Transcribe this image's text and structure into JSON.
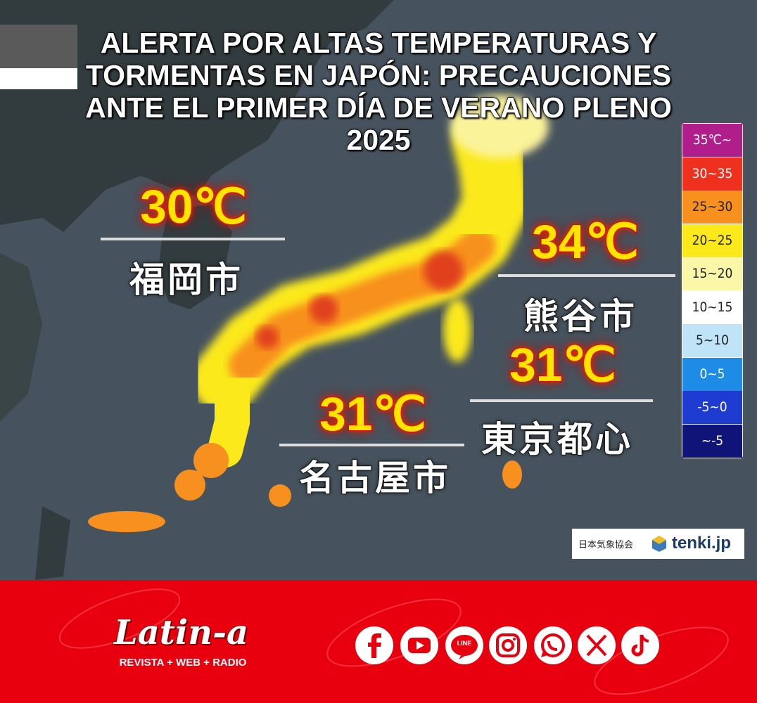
{
  "headline": "ALERTA POR ALTAS TEMPERATURAS Y TORMENTAS EN JAPÓN: PRECAUCIONES ANTE EL PRIMER DÍA DE VERANO PLENO 2025",
  "map": {
    "cities": [
      {
        "temp": "30℃",
        "name": "福岡市"
      },
      {
        "temp": "34℃",
        "name": "熊谷市"
      },
      {
        "temp": "31℃",
        "name": "東京都心"
      },
      {
        "temp": "31℃",
        "name": "名古屋市"
      }
    ],
    "legend": [
      {
        "label": "35℃~",
        "color": "#b01e8c"
      },
      {
        "label": "30~35",
        "color": "#f0301e"
      },
      {
        "label": "25~30",
        "color": "#f7901e"
      },
      {
        "label": "20~25",
        "color": "#fbe91c"
      },
      {
        "label": "15~20",
        "color": "#fbf7a8"
      },
      {
        "label": "10~15",
        "color": "#ffffff"
      },
      {
        "label": "5~10",
        "color": "#bfe3f7"
      },
      {
        "label": "0~5",
        "color": "#1e8ce6"
      },
      {
        "label": "-5~0",
        "color": "#1e3cd2"
      },
      {
        "label": "~-5",
        "color": "#101478"
      }
    ],
    "credit": {
      "org": "日本気象協会",
      "brand": "tenki.jp"
    }
  },
  "footer": {
    "brand": "Latin-a",
    "tagline": "REVISTA + WEB + RADIO",
    "line_icon": "LINE"
  }
}
